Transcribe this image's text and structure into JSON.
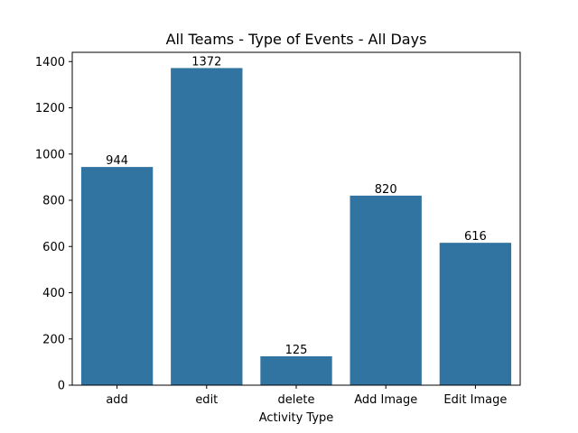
{
  "chart_data": {
    "type": "bar",
    "title": "All Teams - Type of Events - All Days",
    "xlabel": "Activity Type",
    "ylabel": "",
    "categories": [
      "add",
      "edit",
      "delete",
      "Add Image",
      "Edit Image"
    ],
    "values": [
      944,
      1372,
      125,
      820,
      616
    ],
    "data_labels": [
      "944",
      "1372",
      "125",
      "820",
      "616"
    ],
    "ylim": [
      0,
      1440
    ],
    "yticks": [
      0,
      200,
      400,
      600,
      800,
      1000,
      1200,
      1400
    ],
    "ytick_labels": [
      "0",
      "200",
      "400",
      "600",
      "800",
      "1000",
      "1200",
      "1400"
    ],
    "bar_color": "#3274a1",
    "grid": false,
    "legend": "none"
  }
}
